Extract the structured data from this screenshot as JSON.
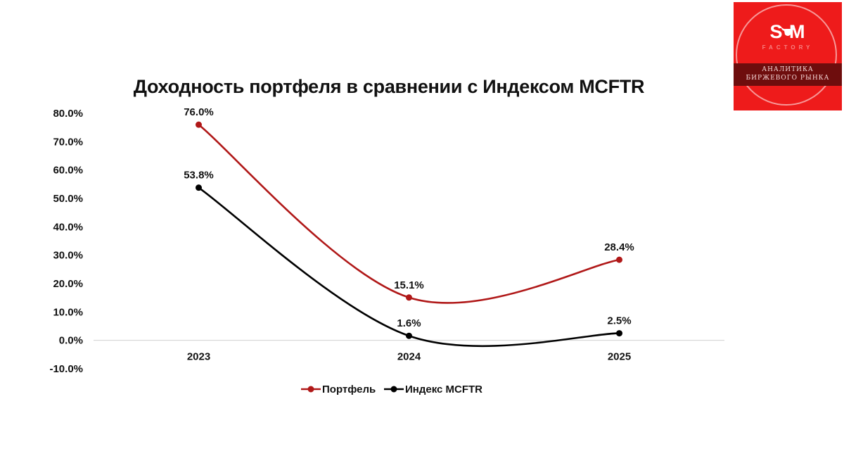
{
  "chart_data": {
    "type": "line",
    "title": "Доходность портфеля в сравнении с Индексом MCFTR",
    "categories": [
      "2023",
      "2024",
      "2025"
    ],
    "ylim": [
      -10,
      80
    ],
    "y_ticks": [
      "80.0%",
      "70.0%",
      "60.0%",
      "50.0%",
      "40.0%",
      "30.0%",
      "20.0%",
      "10.0%",
      "0.0%",
      "-10.0%"
    ],
    "y_tick_values": [
      80,
      70,
      60,
      50,
      40,
      30,
      20,
      10,
      0,
      -10
    ],
    "series": [
      {
        "name": "Портфель",
        "color": "#b01818",
        "values": [
          76.0,
          15.1,
          28.4
        ],
        "labels": [
          "76.0%",
          "15.1%",
          "28.4%"
        ]
      },
      {
        "name": "Индекс MCFTR",
        "color": "#000000",
        "values": [
          53.8,
          1.6,
          2.5
        ],
        "labels": [
          "53.8%",
          "1.6%",
          "2.5%"
        ]
      }
    ],
    "legend_position": "bottom",
    "grid": false
  },
  "logo": {
    "brand": "S M",
    "sub": "FACTORY",
    "line1": "АНАЛИТИКА",
    "line2": "БИРЖЕВОГО РЫНКА",
    "bg_color": "#ee1b1b",
    "icon": "bull-head-icon"
  }
}
